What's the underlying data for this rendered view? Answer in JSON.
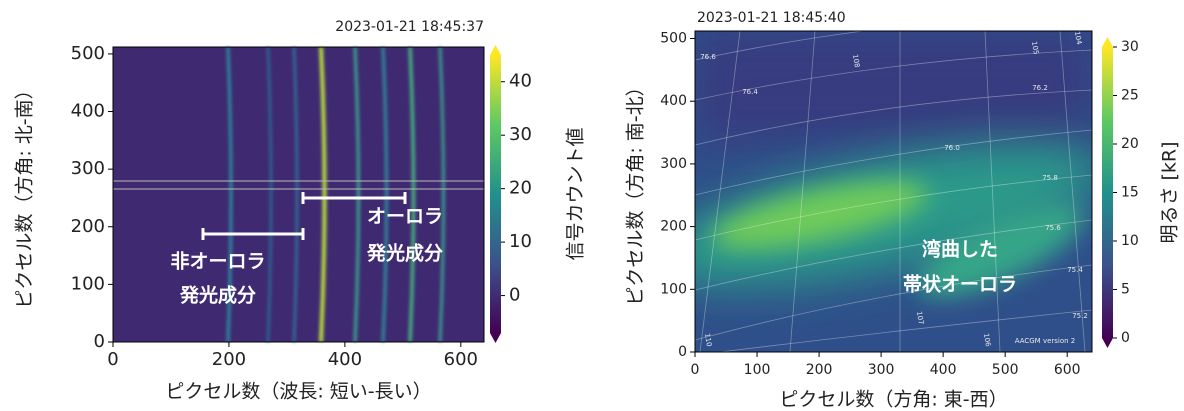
{
  "chart_data": [
    {
      "type": "image",
      "title": "2023-01-21 18:45:37",
      "xlabel": "ピクセル数（波長: 短い-長い）",
      "ylabel": "ピクセル数（方角: 北-南）",
      "xlim": [
        0,
        640
      ],
      "ylim": [
        0,
        512
      ],
      "xticks": [
        0,
        200,
        400,
        600
      ],
      "yticks": [
        0,
        100,
        200,
        300,
        400,
        500
      ],
      "colormap": "viridis",
      "colorbar_label": "信号カウント値",
      "clim": [
        -7,
        45
      ],
      "cticks": [
        0,
        10,
        20,
        30,
        40
      ],
      "annotations": [
        "非オーロラ",
        "発光成分",
        "オーロラ",
        "発光成分"
      ]
    },
    {
      "type": "image",
      "title": "2023-01-21 18:45:40",
      "xlabel": "ピクセル数（方角: 東-西）",
      "ylabel": "ピクセル数（方角: 南-北）",
      "xlim": [
        0,
        640
      ],
      "ylim": [
        0,
        512
      ],
      "xticks": [
        0,
        100,
        200,
        300,
        400,
        500,
        600
      ],
      "yticks": [
        0,
        100,
        200,
        300,
        400,
        500
      ],
      "colormap": "viridis",
      "colorbar_label": "明るさ [kR]",
      "clim": [
        0,
        30
      ],
      "cticks": [
        0,
        5,
        10,
        15,
        20,
        25,
        30
      ],
      "annotations": [
        "湾曲した",
        "帯状オーロラ"
      ],
      "contour_labels": [
        "76.6",
        "76.4",
        "76.2",
        "76.0",
        "75.8",
        "75.6",
        "75.4",
        "75.2",
        "108",
        "105",
        "104",
        "110",
        "107",
        "106"
      ],
      "footnote": "AACGM version 2"
    }
  ]
}
